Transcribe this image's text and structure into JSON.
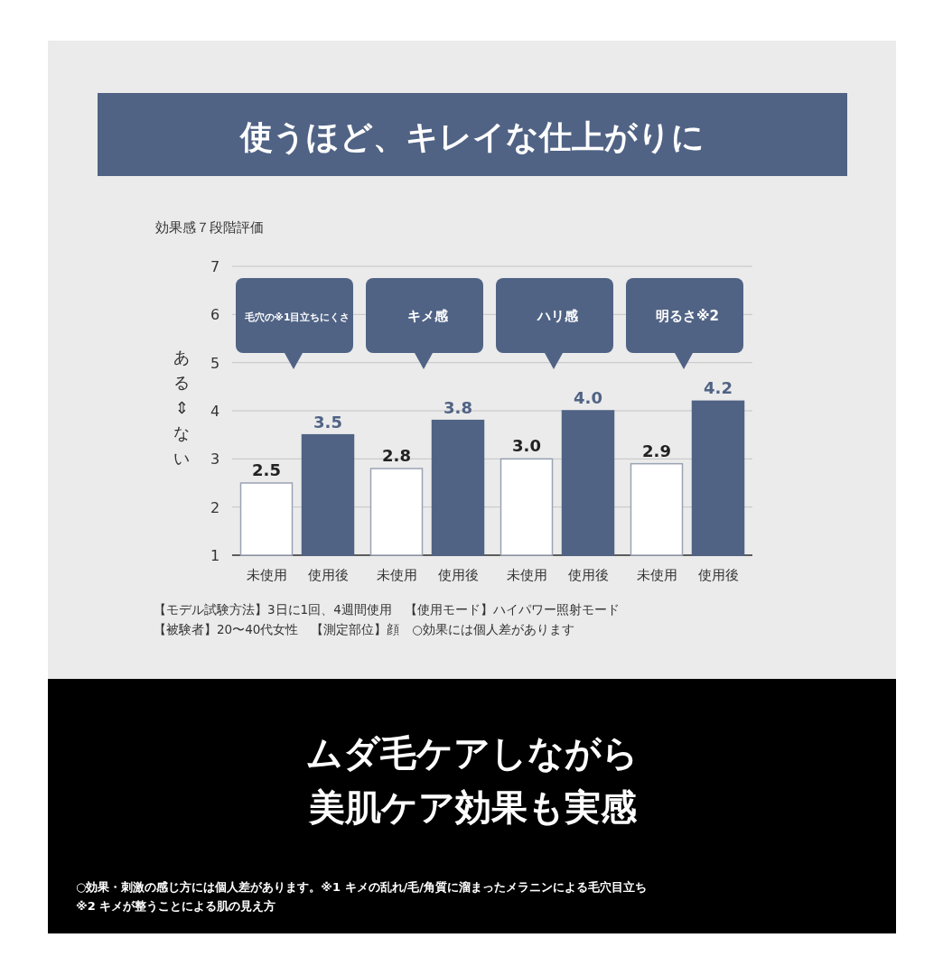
{
  "chart_data": {
    "type": "bar",
    "title": "使うほど、キレイな仕上がりに",
    "subtitle": "効果感７段階評価",
    "ylabel": "ある⇕ない",
    "categories": [
      "毛穴の※1目立ちにくさ",
      "キメ感",
      "ハリ感",
      "明るさ※2"
    ],
    "series": [
      {
        "name": "未使用",
        "color": "#ffffff",
        "values": [
          2.5,
          2.8,
          3.0,
          2.9
        ],
        "value_labels": [
          "2.5",
          "2.8",
          "3.0",
          "2.9"
        ]
      },
      {
        "name": "使用後",
        "color": "#506385",
        "values": [
          3.5,
          3.8,
          4.0,
          4.2
        ],
        "value_labels": [
          "3.5",
          "3.8",
          "4.0",
          "4.2"
        ]
      }
    ],
    "ylim": [
      1,
      7
    ],
    "yticks": [
      1,
      2,
      3,
      4,
      5,
      6,
      7
    ],
    "grid": "y",
    "annotations": [
      "【モデル試験方法】3日に1回、4週間使用　【使用モード】ハイパワー照射モード",
      "【被験者】20〜40代女性　【測定部位】顔　○効果には個人差があります",
      "ムダ毛ケアしながら",
      "美肌ケア効果も実感",
      "○効果・刺激の感じ方には個人差があります。※1 キメの乱れ/毛/角質に溜まったメラニンによる毛穴目立ち\n※2 キメが整うことによる肌の見え方"
    ]
  }
}
